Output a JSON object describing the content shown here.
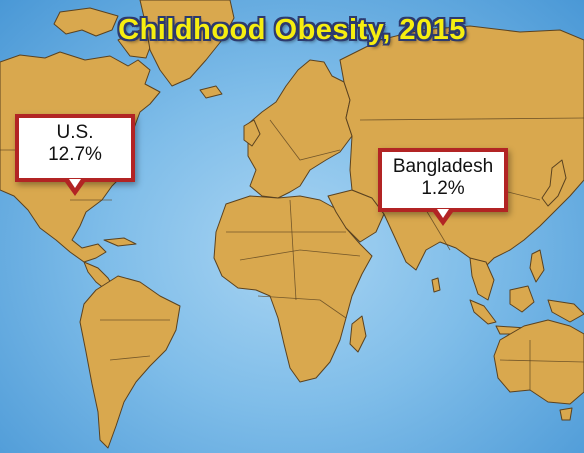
{
  "title": "Childhood Obesity, 2015",
  "callouts": {
    "us": {
      "country": "U.S.",
      "value": "12.7%"
    },
    "bangladesh": {
      "country": "Bangladesh",
      "value": "1.2%"
    }
  },
  "colors": {
    "ocean": "#7fbde9",
    "land": "#d9a84e",
    "title_text": "#f6ee10",
    "title_outline": "#2d3a6e",
    "callout_border": "#b22424"
  }
}
